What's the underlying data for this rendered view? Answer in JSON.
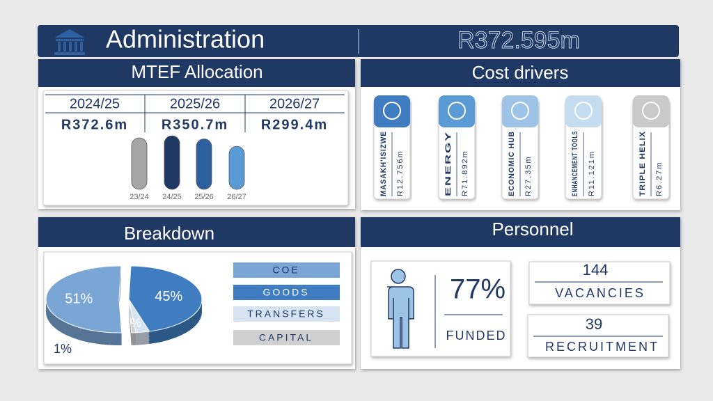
{
  "header": {
    "title": "Administration",
    "total": "R372.595m"
  },
  "mtef": {
    "title": "MTEF Allocation",
    "years": [
      {
        "year": "2024/25",
        "amount": "R372.6m"
      },
      {
        "year": "2025/26",
        "amount": "R350.7m"
      },
      {
        "year": "2026/27",
        "amount": "R299.4m"
      }
    ],
    "pills": {
      "type": "bar",
      "categories": [
        "23/24",
        "24/25",
        "25/26",
        "26/27"
      ],
      "values": [
        358,
        372.6,
        350.7,
        299.4
      ],
      "colors": [
        "#a6a6a6",
        "#1f3864",
        "#2e5f9e",
        "#5b9bd5"
      ]
    }
  },
  "cost_drivers": {
    "title": "Cost drivers",
    "items": [
      {
        "name": "MASAKH'ISIZWE",
        "amount": "R12.756m",
        "color": "#3f7dc0"
      },
      {
        "name": "ENERGY",
        "amount": "R71.892m",
        "color": "#5b9bd5"
      },
      {
        "name": "ECONOMIC HUB",
        "amount": "R27.35m",
        "color": "#9dc3e6"
      },
      {
        "name": "ENHANCEMENT TOOLS",
        "amount": "R11.121m",
        "color": "#c5dcf0"
      },
      {
        "name": "TRIPLE HELIX",
        "amount": "R6.27m",
        "color": "#c9c9c9"
      }
    ]
  },
  "breakdown": {
    "title": "Breakdown",
    "chart": {
      "type": "pie",
      "categories": [
        "COE",
        "GOODS",
        "TRANSFERS",
        "CAPITAL"
      ],
      "values": [
        51,
        45,
        3,
        1
      ],
      "value_labels": [
        "51%",
        "45%",
        "3%",
        "1%"
      ],
      "colors": [
        "#7aa6d6",
        "#3f7dc0",
        "#d6e3f1",
        "#d0d0d0"
      ]
    }
  },
  "personnel": {
    "title": "Personnel",
    "funded_pct": "77%",
    "funded_label": "FUNDED",
    "vacancies": "144",
    "vacancies_label": "VACANCIES",
    "recruitment": "39",
    "recruitment_label": "RECRUITMENT"
  }
}
